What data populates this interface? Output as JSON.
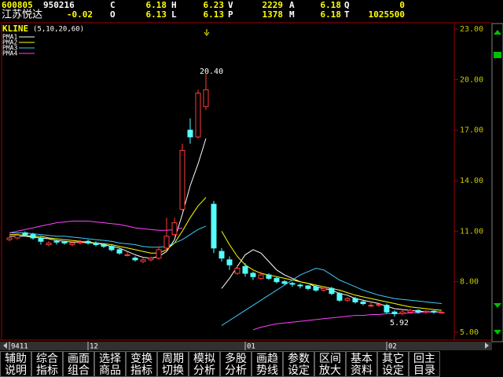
{
  "header": {
    "code": "600805",
    "date": "950216",
    "name": "江苏悦达",
    "change": "-0.02",
    "fields": [
      {
        "label": "C",
        "value": "6.18"
      },
      {
        "label": "H",
        "value": "6.23"
      },
      {
        "label": "V",
        "value": "2229"
      },
      {
        "label": "A",
        "value": "6.18"
      },
      {
        "label": "Q",
        "value": "0"
      },
      {
        "label": "O",
        "value": "6.13"
      },
      {
        "label": "L",
        "value": "6.13"
      },
      {
        "label": "P",
        "value": "1378"
      },
      {
        "label": "M",
        "value": "6.18"
      },
      {
        "label": "T",
        "value": "1025500"
      }
    ]
  },
  "chart_data": {
    "type": "candlestick",
    "title": "KLINE",
    "subtitle": "(5,10,20,60)",
    "categories": [
      "9411",
      null,
      null,
      null,
      null,
      null,
      null,
      null,
      null,
      null,
      "12",
      null,
      null,
      null,
      null,
      null,
      null,
      null,
      null,
      null,
      null,
      null,
      null,
      null,
      null,
      null,
      null,
      null,
      null,
      null,
      "01",
      null,
      null,
      null,
      null,
      null,
      null,
      null,
      null,
      null,
      null,
      null,
      null,
      null,
      null,
      null,
      null,
      null,
      "02",
      null,
      null,
      null,
      null,
      null,
      null,
      null
    ],
    "open": [
      10.5,
      10.6,
      10.9,
      10.8,
      10.6,
      10.2,
      10.4,
      10.35,
      10.2,
      10.3,
      10.4,
      10.3,
      10.2,
      10.1,
      9.9,
      9.6,
      9.4,
      9.2,
      9.3,
      9.4,
      10.0,
      10.8,
      12.3,
      17.0,
      16.6,
      18.4,
      12.6,
      9.8,
      9.3,
      8.5,
      8.9,
      8.5,
      8.2,
      8.4,
      8.2,
      8.0,
      7.9,
      7.8,
      7.75,
      7.7,
      7.5,
      7.6,
      7.3,
      6.9,
      7.0,
      6.8,
      6.6,
      6.6,
      6.6,
      6.2,
      6.1,
      6.2,
      6.3,
      6.2,
      6.25,
      6.13
    ],
    "high": [
      10.7,
      10.9,
      11.0,
      10.9,
      10.7,
      10.4,
      10.5,
      10.4,
      10.4,
      10.5,
      10.5,
      10.4,
      10.3,
      10.2,
      10.0,
      9.8,
      9.5,
      9.4,
      9.5,
      10.1,
      11.8,
      11.8,
      16.2,
      17.7,
      19.4,
      20.4,
      12.8,
      10.0,
      9.5,
      9.0,
      9.1,
      8.6,
      8.6,
      8.5,
      8.3,
      8.1,
      8.0,
      7.9,
      7.8,
      7.8,
      7.7,
      7.7,
      7.4,
      7.1,
      7.1,
      6.9,
      6.8,
      6.7,
      6.7,
      6.3,
      6.3,
      6.4,
      6.35,
      6.3,
      6.3,
      6.23
    ],
    "low": [
      10.4,
      10.5,
      10.7,
      10.5,
      10.2,
      10.1,
      10.2,
      10.2,
      10.1,
      10.2,
      10.2,
      10.1,
      10.0,
      9.8,
      9.6,
      9.5,
      9.2,
      9.1,
      9.2,
      9.3,
      9.9,
      10.7,
      12.2,
      16.2,
      16.5,
      18.2,
      9.7,
      9.2,
      8.7,
      8.4,
      8.3,
      8.1,
      8.1,
      8.1,
      7.9,
      7.8,
      7.7,
      7.6,
      7.5,
      7.4,
      7.4,
      7.2,
      6.8,
      6.8,
      6.7,
      6.6,
      6.5,
      6.5,
      6.1,
      5.92,
      6.0,
      6.1,
      6.1,
      6.1,
      6.1,
      6.13
    ],
    "close": [
      10.6,
      10.75,
      10.8,
      10.6,
      10.4,
      10.3,
      10.35,
      10.3,
      10.3,
      10.35,
      10.3,
      10.2,
      10.1,
      9.9,
      9.7,
      9.6,
      9.3,
      9.3,
      9.4,
      9.9,
      10.7,
      11.5,
      15.8,
      16.6,
      19.2,
      19.4,
      10.0,
      9.4,
      9.0,
      8.8,
      8.5,
      8.3,
      8.4,
      8.2,
      8.0,
      7.9,
      7.85,
      7.75,
      7.6,
      7.5,
      7.6,
      7.3,
      6.9,
      7.0,
      6.8,
      6.7,
      6.6,
      6.65,
      6.2,
      6.1,
      6.2,
      6.3,
      6.2,
      6.25,
      6.2,
      6.18
    ],
    "up_color": "#ff3c3c",
    "down_color": "#54ffff",
    "series": [
      {
        "name": "PMA1",
        "color": "#ffffff",
        "values": [
          10.7,
          10.7,
          10.7,
          10.65,
          10.6,
          10.55,
          10.45,
          10.4,
          10.35,
          10.35,
          10.3,
          10.3,
          10.2,
          10.1,
          10.0,
          9.8,
          9.6,
          9.45,
          9.4,
          9.5,
          9.8,
          10.5,
          12.0,
          13.7,
          15.0,
          16.5,
          null,
          7.6,
          8.2,
          8.9,
          9.6,
          9.9,
          9.7,
          9.2,
          8.7,
          8.4,
          8.2,
          8.0,
          7.9,
          7.7,
          7.6,
          7.5,
          7.3,
          7.2,
          7.0,
          6.9,
          6.8,
          6.7,
          6.55,
          6.4,
          6.35,
          6.3,
          6.25,
          6.22,
          6.2,
          6.2
        ]
      },
      {
        "name": "PMA2",
        "color": "#ffff00",
        "values": [
          10.8,
          10.8,
          10.75,
          10.7,
          10.7,
          10.6,
          10.55,
          10.5,
          10.45,
          10.4,
          10.35,
          10.3,
          10.25,
          10.2,
          10.1,
          10.0,
          9.9,
          9.8,
          9.7,
          9.7,
          9.9,
          10.3,
          11.0,
          11.8,
          12.5,
          13.0,
          null,
          11.0,
          10.2,
          9.5,
          9.0,
          8.7,
          8.5,
          8.4,
          8.3,
          8.2,
          8.1,
          8.0,
          7.9,
          7.8,
          7.7,
          7.6,
          7.5,
          7.35,
          7.2,
          7.1,
          7.0,
          6.9,
          6.8,
          6.7,
          6.6,
          6.5,
          6.45,
          6.4,
          6.35,
          6.3
        ]
      },
      {
        "name": "PMA3",
        "color": "#40c8ff",
        "values": [
          10.9,
          10.9,
          10.9,
          10.85,
          10.8,
          10.75,
          10.7,
          10.7,
          10.65,
          10.6,
          10.55,
          10.5,
          10.45,
          10.4,
          10.3,
          10.25,
          10.2,
          10.1,
          10.05,
          10.05,
          10.1,
          10.3,
          10.5,
          10.8,
          11.1,
          11.3,
          null,
          5.4,
          5.7,
          6.0,
          6.3,
          6.6,
          6.9,
          7.2,
          7.5,
          7.8,
          8.1,
          8.4,
          8.6,
          8.8,
          8.7,
          8.4,
          8.1,
          7.9,
          7.7,
          7.5,
          7.35,
          7.2,
          7.1,
          7.0,
          6.95,
          6.9,
          6.85,
          6.8,
          6.75,
          6.7
        ]
      },
      {
        "name": "PMA4",
        "color": "#ff40ff",
        "values": [
          10.9,
          11.0,
          11.1,
          11.2,
          11.3,
          11.4,
          11.5,
          11.55,
          11.6,
          11.6,
          11.6,
          11.55,
          11.5,
          11.45,
          11.4,
          11.3,
          11.2,
          11.15,
          11.1,
          11.05,
          11.05,
          11.1,
          11.2,
          null,
          null,
          null,
          null,
          null,
          null,
          null,
          null,
          5.15,
          5.3,
          5.4,
          5.5,
          5.55,
          5.6,
          5.65,
          5.7,
          5.75,
          5.8,
          5.85,
          5.9,
          5.95,
          6.0,
          6.0,
          6.05,
          6.05,
          6.1,
          6.1,
          6.1,
          6.15,
          6.15,
          6.2,
          6.2,
          6.2
        ]
      }
    ],
    "ylim": [
      4.58,
      23.33
    ],
    "yticks": [
      {
        "value": 23,
        "label": "23.00"
      },
      {
        "value": 20,
        "label": "20.00"
      },
      {
        "value": 17,
        "label": "17.00"
      },
      {
        "value": 14,
        "label": "14.00"
      },
      {
        "value": 11,
        "label": "11.00"
      },
      {
        "value": 8,
        "label": "8.00"
      },
      {
        "value": 5,
        "label": "5.00"
      }
    ],
    "grid": false,
    "annotations": [
      "20.40",
      "5.92"
    ]
  },
  "buttons": [
    [
      "辅助",
      "说明"
    ],
    [
      "综合",
      "指标"
    ],
    [
      "画面",
      "组合"
    ],
    [
      "选择",
      "商品"
    ],
    [
      "变换",
      "指标"
    ],
    [
      "周期",
      "切换"
    ],
    [
      "模拟",
      "分析"
    ],
    [
      "多股",
      "分析"
    ],
    [
      "画趋",
      "势线"
    ],
    [
      "参数",
      "设定"
    ],
    [
      "区间",
      "放大"
    ],
    [
      "基本",
      "资料"
    ],
    [
      "其它",
      "设定"
    ],
    [
      "回主",
      "目录"
    ]
  ]
}
